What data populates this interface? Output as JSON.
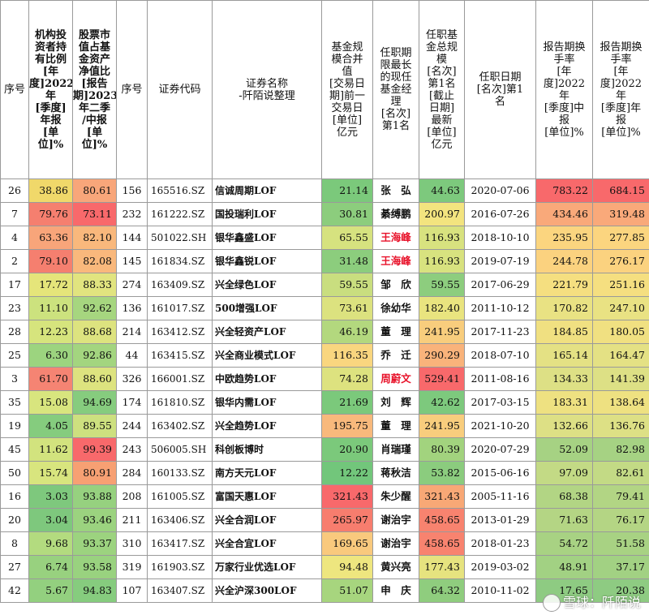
{
  "headers": [
    "序号",
    "机构投\n资者持\n有比例\n[年\n度]2022\n年\n[季度]\n年报\n[单\n位]%",
    "股票市\n值占基\n金资产\n净值比\n[报告\n期]2023\n年二季\n/中报\n[单\n位]%",
    "序号",
    "证券代码",
    "证券名称\n-阡陌说整理",
    "基金规\n模合并\n值\n[交易日\n期]前一\n交易日\n[单位]\n亿元",
    "任职期\n限最长\n的现任\n基金经\n理\n[名次]\n第1名",
    "任职基\n金总规\n模\n[名次]\n第1名\n[截止\n日期]\n最新\n[单位]\n亿元",
    "任职日期\n[名次]第1\n名",
    "报告期换\n手率\n[年\n度]2022\n年\n[季度]中\n报\n[单位]%",
    "报告期换\n手率\n[年\n度]2022\n年\n[季度]年\n报\n[单位]%"
  ],
  "rows": [
    {
      "seq": "26",
      "inst": "38.86",
      "stock": "80.61",
      "seq2": "156",
      "code": "165516.SZ",
      "name": "信诚周期LOF",
      "scale": "21.14",
      "manager": "张　弘",
      "mgr_red": false,
      "mgr_scale": "44.63",
      "date": "2020-07-06",
      "t1": "783.22",
      "t2": "684.15"
    },
    {
      "seq": "7",
      "inst": "79.76",
      "stock": "73.11",
      "seq2": "232",
      "code": "161222.SZ",
      "name": "国投瑞利LOF",
      "scale": "30.81",
      "manager": "綦缚鹏",
      "mgr_red": false,
      "mgr_scale": "200.97",
      "date": "2016-07-26",
      "t1": "434.46",
      "t2": "319.48"
    },
    {
      "seq": "4",
      "inst": "63.36",
      "stock": "82.10",
      "seq2": "144",
      "code": "501022.SH",
      "name": "银华鑫盛LOF",
      "scale": "65.55",
      "manager": "王海峰",
      "mgr_red": true,
      "mgr_scale": "116.93",
      "date": "2018-10-10",
      "t1": "235.95",
      "t2": "277.85"
    },
    {
      "seq": "2",
      "inst": "79.10",
      "stock": "82.08",
      "seq2": "145",
      "code": "161834.SZ",
      "name": "银华鑫锐LOF",
      "scale": "31.48",
      "manager": "王海峰",
      "mgr_red": true,
      "mgr_scale": "116.93",
      "date": "2019-07-19",
      "t1": "244.78",
      "t2": "276.17"
    },
    {
      "seq": "17",
      "inst": "17.72",
      "stock": "88.33",
      "seq2": "274",
      "code": "163409.SZ",
      "name": "兴全绿色LOF",
      "scale": "59.55",
      "manager": "邹　欣",
      "mgr_red": false,
      "mgr_scale": "59.55",
      "date": "2017-06-29",
      "t1": "221.79",
      "t2": "251.16"
    },
    {
      "seq": "23",
      "inst": "11.10",
      "stock": "92.62",
      "seq2": "136",
      "code": "161017.SZ",
      "name": "500增强LOF",
      "scale": "73.61",
      "manager": "徐幼华",
      "mgr_red": false,
      "mgr_scale": "182.40",
      "date": "2011-10-12",
      "t1": "170.82",
      "t2": "247.10"
    },
    {
      "seq": "28",
      "inst": "12.23",
      "stock": "88.68",
      "seq2": "214",
      "code": "163412.SZ",
      "name": "兴全轻资产LOF",
      "scale": "46.19",
      "manager": "董　理",
      "mgr_red": false,
      "mgr_scale": "241.95",
      "date": "2017-11-23",
      "t1": "184.85",
      "t2": "180.05"
    },
    {
      "seq": "25",
      "inst": "6.30",
      "stock": "92.86",
      "seq2": "44",
      "code": "163415.SZ",
      "name": "兴全商业模式LOF",
      "scale": "116.35",
      "manager": "乔　迁",
      "mgr_red": false,
      "mgr_scale": "290.29",
      "date": "2018-07-10",
      "t1": "165.14",
      "t2": "164.47"
    },
    {
      "seq": "3",
      "inst": "61.70",
      "stock": "88.60",
      "seq2": "326",
      "code": "166001.SZ",
      "name": "中欧趋势LOF",
      "scale": "74.28",
      "manager": "周蔚文",
      "mgr_red": true,
      "mgr_scale": "529.41",
      "date": "2011-08-16",
      "t1": "134.33",
      "t2": "141.39"
    },
    {
      "seq": "35",
      "inst": "15.08",
      "stock": "94.69",
      "seq2": "174",
      "code": "161810.SZ",
      "name": "银华内需LOF",
      "scale": "21.69",
      "manager": "刘　辉",
      "mgr_red": false,
      "mgr_scale": "42.62",
      "date": "2017-03-15",
      "t1": "183.31",
      "t2": "138.64"
    },
    {
      "seq": "19",
      "inst": "4.05",
      "stock": "89.55",
      "seq2": "244",
      "code": "163402.SZ",
      "name": "兴全趋势LOF",
      "scale": "195.75",
      "manager": "董　理",
      "mgr_red": false,
      "mgr_scale": "241.95",
      "date": "2021-10-20",
      "t1": "132.66",
      "t2": "136.76"
    },
    {
      "seq": "45",
      "inst": "11.62",
      "stock": "99.39",
      "seq2": "243",
      "code": "506005.SH",
      "name": "科创板博时",
      "scale": "20.90",
      "manager": "肖瑞瑾",
      "mgr_red": false,
      "mgr_scale": "80.39",
      "date": "2020-07-29",
      "t1": "52.09",
      "t2": "82.98"
    },
    {
      "seq": "50",
      "inst": "15.74",
      "stock": "80.91",
      "seq2": "284",
      "code": "160133.SZ",
      "name": "南方天元LOF",
      "scale": "12.22",
      "manager": "蒋秋洁",
      "mgr_red": false,
      "mgr_scale": "53.82",
      "date": "2015-06-16",
      "t1": "97.09",
      "t2": "82.61"
    },
    {
      "seq": "16",
      "inst": "3.03",
      "stock": "93.88",
      "seq2": "208",
      "code": "161005.SZ",
      "name": "富国天惠LOF",
      "scale": "321.43",
      "manager": "朱少醒",
      "mgr_red": false,
      "mgr_scale": "321.43",
      "date": "2005-11-16",
      "t1": "68.38",
      "t2": "79.41"
    },
    {
      "seq": "20",
      "inst": "3.04",
      "stock": "93.46",
      "seq2": "211",
      "code": "163406.SZ",
      "name": "兴全合润LOF",
      "scale": "265.97",
      "manager": "谢治宇",
      "mgr_red": false,
      "mgr_scale": "458.65",
      "date": "2013-01-29",
      "t1": "71.63",
      "t2": "76.17"
    },
    {
      "seq": "8",
      "inst": "9.68",
      "stock": "93.37",
      "seq2": "310",
      "code": "163417.SZ",
      "name": "兴全合宜LOF",
      "scale": "169.65",
      "manager": "谢治宇",
      "mgr_red": false,
      "mgr_scale": "458.65",
      "date": "2018-01-23",
      "t1": "54.72",
      "t2": "51.58"
    },
    {
      "seq": "27",
      "inst": "6.74",
      "stock": "93.58",
      "seq2": "319",
      "code": "161903.SZ",
      "name": "万家行业优选LOF",
      "scale": "94.48",
      "manager": "黄兴亮",
      "mgr_red": false,
      "mgr_scale": "177.43",
      "date": "2019-03-02",
      "t1": "48.91",
      "t2": "37.17"
    },
    {
      "seq": "42",
      "inst": "5.67",
      "stock": "94.83",
      "seq2": "107",
      "code": "163407.SZ",
      "name": "兴全沪深300LOF",
      "scale": "51.07",
      "manager": "申　庆",
      "mgr_red": false,
      "mgr_scale": "64.32",
      "date": "2010-11-02",
      "t1": "17.65",
      "t2": "20.38"
    }
  ],
  "colors": {
    "inst": [
      "#f0d86a",
      "#f57f6f",
      "#f8a57a",
      "#f57f6f",
      "#e5e57a",
      "#cce27e",
      "#d6e47d",
      "#9cd47f",
      "#f58473",
      "#d8e57e",
      "#85cc7e",
      "#d2e37e",
      "#d8e57e",
      "#7ec87d",
      "#7ec87d",
      "#b3db7f",
      "#98d17f",
      "#93d07f"
    ],
    "stock": [
      "#f8a67a",
      "#f8696b",
      "#f9b87c",
      "#f9b87c",
      "#e1e47f",
      "#a6d67f",
      "#dde37f",
      "#a3d57f",
      "#dde37f",
      "#86cc7e",
      "#cde07f",
      "#f8696b",
      "#f7a073",
      "#96d17f",
      "#9bd37f",
      "#9cd37f",
      "#99d27f",
      "#86cc7e"
    ],
    "scale": [
      "#7bc97b",
      "#8ccd7d",
      "#d6e27f",
      "#8ccd7d",
      "#c9de7f",
      "#dce27f",
      "#b3d87e",
      "#f9d67f",
      "#dde27f",
      "#7bc97b",
      "#f8b97c",
      "#7bc97b",
      "#72c67b",
      "#f8696b",
      "#f77d6e",
      "#f9c97d",
      "#eee67f",
      "#a7d57e"
    ],
    "mgr": [
      "#7dc97d",
      "#f3e47f",
      "#d8e27f",
      "#d8e27f",
      "#8dcd7e",
      "#e9e47f",
      "#f8cd7d",
      "#f9b37b",
      "#f8696b",
      "#7dc97d",
      "#f8cd7d",
      "#a2d37e",
      "#8bcc7e",
      "#f8a876",
      "#f8836f",
      "#f8836f",
      "#e6e37f",
      "#8fcd7e"
    ],
    "t1": [
      "#f8696b",
      "#f9a97a",
      "#fbd57f",
      "#fbd27f",
      "#f5df80",
      "#e9e283",
      "#f0e081",
      "#e4e184",
      "#dde085",
      "#eee181",
      "#dde085",
      "#a6d283",
      "#c3da85",
      "#b2d584",
      "#b4d584",
      "#a8d283",
      "#a2d183",
      "#8ecb82"
    ],
    "t2": [
      "#f8696b",
      "#f9a97a",
      "#fbd57f",
      "#fbd27f",
      "#f5df80",
      "#e9e283",
      "#f0e081",
      "#e4e184",
      "#dde085",
      "#eee181",
      "#dde085",
      "#a6d283",
      "#c3da85",
      "#b2d584",
      "#b4d584",
      "#a8d283",
      "#a2d183",
      "#8ecb82"
    ]
  },
  "watermark": "雪球：阡陌说"
}
